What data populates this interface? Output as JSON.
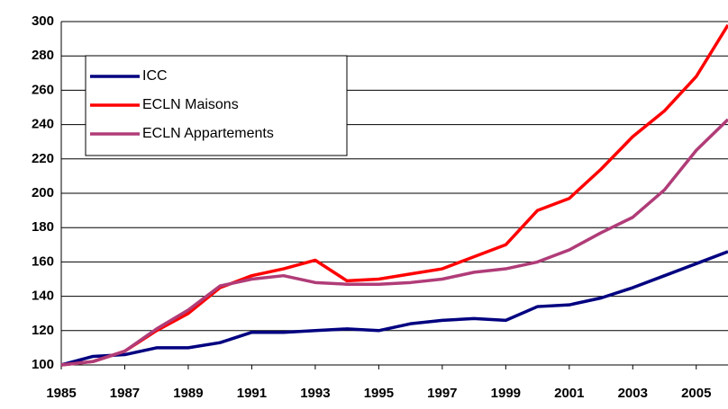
{
  "chart_data": {
    "type": "line",
    "x": [
      1985,
      1986,
      1987,
      1988,
      1989,
      1990,
      1991,
      1992,
      1993,
      1994,
      1995,
      1996,
      1997,
      1998,
      1999,
      2000,
      2001,
      2002,
      2003,
      2004,
      2005,
      2006
    ],
    "series": [
      {
        "name": "ICC",
        "color": "#000080",
        "values": [
          100,
          105,
          106,
          110,
          110,
          113,
          119,
          119,
          120,
          121,
          120,
          124,
          126,
          127,
          126,
          134,
          135,
          139,
          145,
          152,
          159,
          166
        ]
      },
      {
        "name": "ECLN Maisons",
        "color": "#ff0000",
        "values": [
          100,
          102,
          108,
          120,
          130,
          145,
          152,
          156,
          161,
          149,
          150,
          153,
          156,
          163,
          170,
          190,
          197,
          214,
          233,
          248,
          268,
          298
        ]
      },
      {
        "name": "ECLN Appartements",
        "color": "#b03c78",
        "values": [
          100,
          102,
          108,
          121,
          132,
          146,
          150,
          152,
          148,
          147,
          147,
          148,
          150,
          154,
          156,
          160,
          167,
          177,
          186,
          202,
          225,
          243
        ]
      }
    ],
    "xlim": [
      1985,
      2006
    ],
    "xticks": [
      1985,
      1987,
      1989,
      1991,
      1993,
      1995,
      1997,
      1999,
      2001,
      2003,
      2005
    ],
    "ylim": [
      100,
      300
    ],
    "yticks": [
      100,
      120,
      140,
      160,
      180,
      200,
      220,
      240,
      260,
      280,
      300
    ],
    "grid": true,
    "legend": "upper left"
  }
}
